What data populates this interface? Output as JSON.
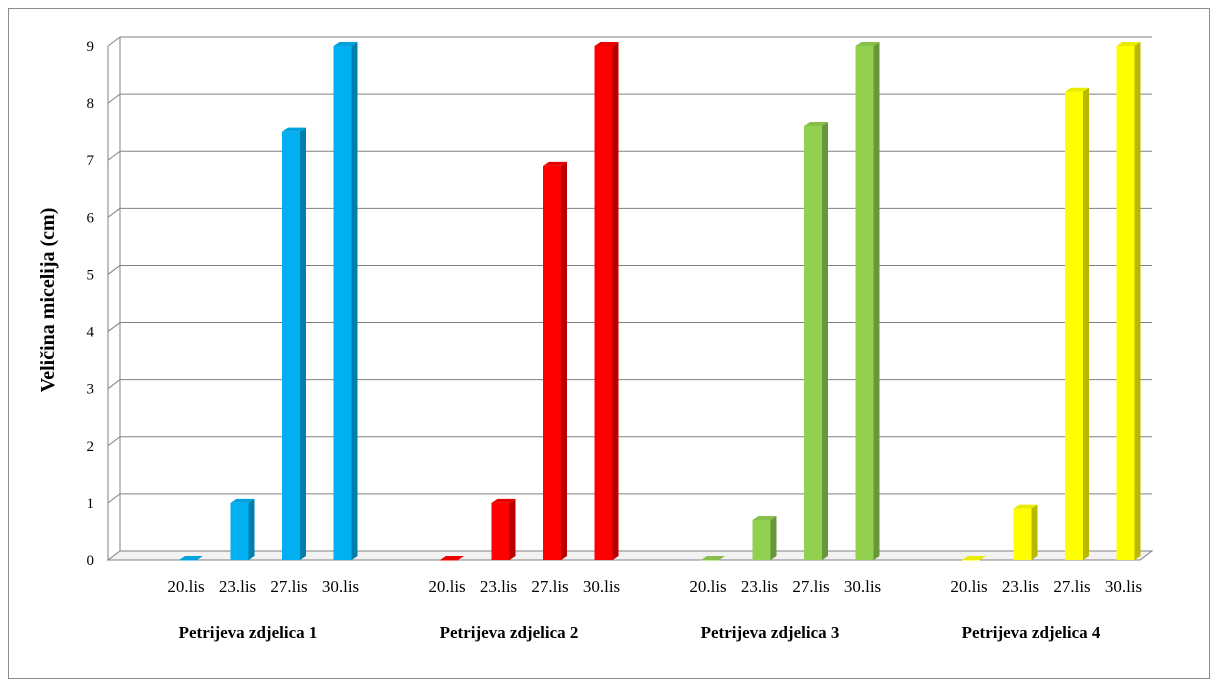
{
  "chart_data": {
    "type": "bar",
    "ylabel": "Veličina micelija (cm)",
    "ylim": [
      0,
      9
    ],
    "yticks": [
      "0",
      "1",
      "2",
      "3",
      "4",
      "5",
      "6",
      "7",
      "8",
      "9"
    ],
    "grid": true,
    "categories": [
      "20.lis",
      "23.lis",
      "27.lis",
      "30.lis"
    ],
    "groups": [
      {
        "label": "Petrijeva zdjelica 1",
        "color": "#00b0f0",
        "values": [
          0,
          1.0,
          7.5,
          9.0
        ]
      },
      {
        "label": "Petrijeva zdjelica 2",
        "color": "#ff0000",
        "values": [
          0,
          1.0,
          6.9,
          9.0
        ]
      },
      {
        "label": "Petrijeva zdjelica 3",
        "color": "#92d050",
        "values": [
          0,
          0.7,
          7.6,
          9.0
        ]
      },
      {
        "label": "Petrijeva zdjelica 4",
        "color": "#ffff00",
        "values": [
          0,
          0.9,
          8.2,
          9.0
        ]
      }
    ]
  }
}
